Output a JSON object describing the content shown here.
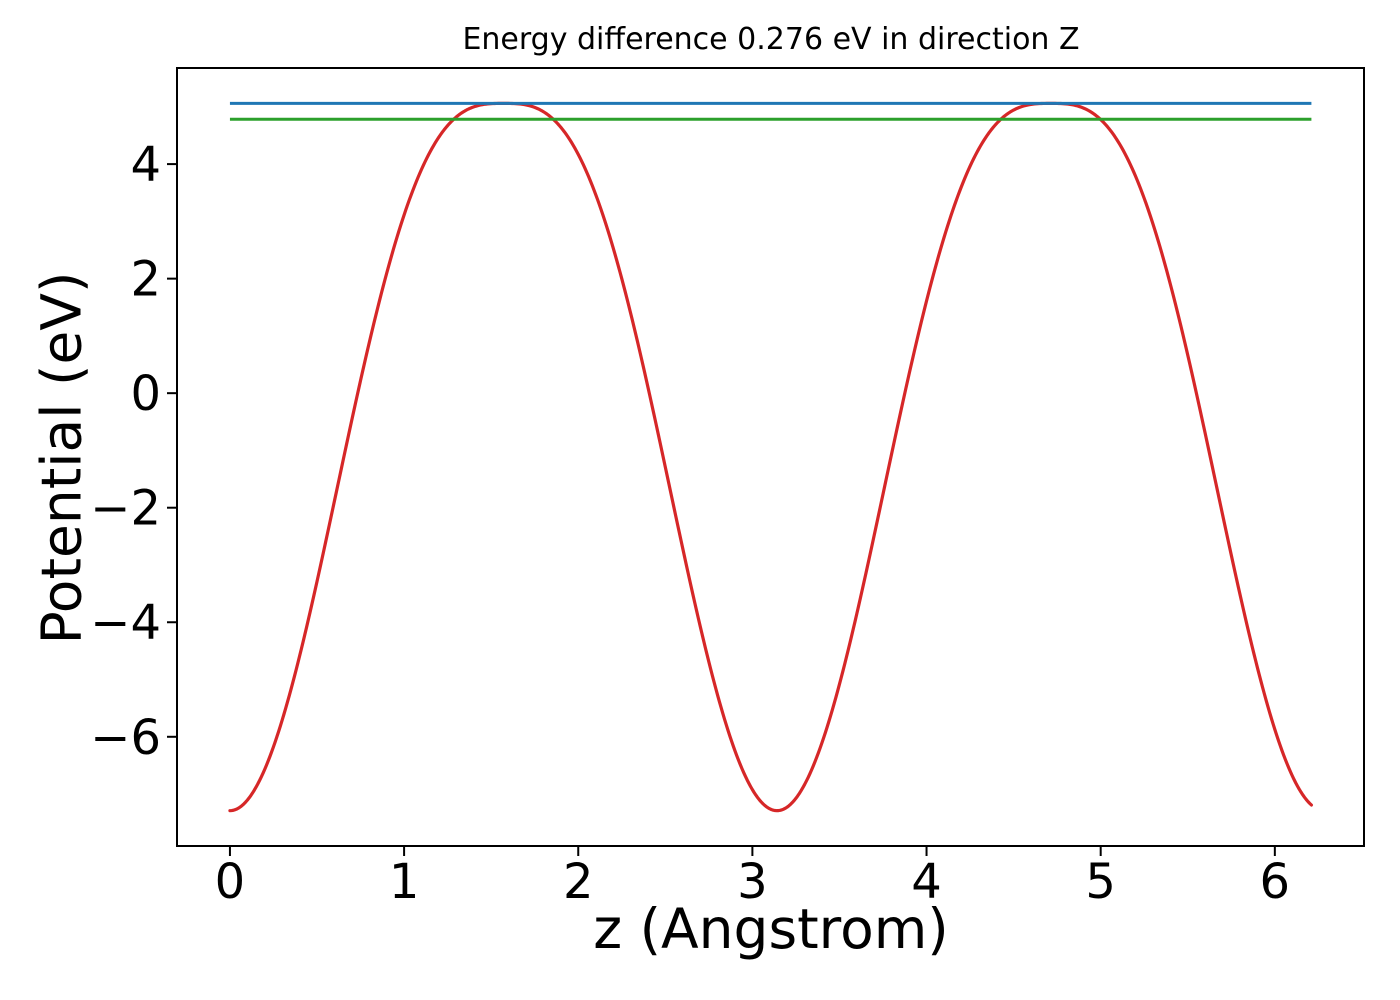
{
  "figure": {
    "background": "#ffffff",
    "spine_color": "#000000"
  },
  "chart_data": {
    "type": "line",
    "title": "Energy difference 0.276 eV in direction Z",
    "xlabel": "z (Angstrom)",
    "ylabel": "Potential (eV)",
    "energy_difference_ev": 0.276,
    "xlim": [
      -0.304,
      6.512
    ],
    "ylim": [
      -7.907,
      5.678
    ],
    "grid": false,
    "legend_position": "none",
    "xticks": {
      "values": [
        0,
        1,
        2,
        3,
        4,
        5,
        6
      ],
      "labels": [
        "0",
        "1",
        "2",
        "3",
        "4",
        "5",
        "6"
      ]
    },
    "yticks": {
      "values": [
        4,
        2,
        0,
        -2,
        -4,
        -6
      ],
      "labels": [
        "4",
        "2",
        "0",
        "−2",
        "−4",
        "−6"
      ]
    },
    "series": [
      {
        "name": "potential-curve",
        "type": "curve",
        "color": "#d62728",
        "line_width": 3.2,
        "model": {
          "kind": "cosine-power-well",
          "formula": "V(z) = v_min + (v_max - v_min) * (1 - |cos z|^power)",
          "v_min": -7.29,
          "v_max": 5.06,
          "power": 3,
          "z_start": 0,
          "z_end": 6.21
        },
        "samples": {
          "z": [
            0,
            0.314,
            0.628,
            0.942,
            1.257,
            1.571,
            1.885,
            2.199,
            2.513,
            2.827,
            3.142,
            3.456,
            3.77,
            4.084,
            4.398,
            4.712,
            5.027,
            5.341,
            5.655,
            5.969,
            6.21
          ],
          "v": [
            -7.29,
            -5.56,
            -1.48,
            2.55,
            4.7,
            5.06,
            4.7,
            2.55,
            -1.48,
            -5.56,
            -7.29,
            -5.56,
            -1.48,
            2.55,
            4.7,
            5.06,
            4.7,
            2.55,
            -1.48,
            -5.56,
            -7.19
          ]
        }
      },
      {
        "name": "level-line-green",
        "type": "hline",
        "color": "#2ca02c",
        "line_width": 3,
        "value": 4.784,
        "z_start": 0,
        "z_end": 6.21
      },
      {
        "name": "level-line-blue",
        "type": "hline",
        "color": "#1f77b4",
        "line_width": 3,
        "value": 5.06,
        "z_start": 0,
        "z_end": 6.21
      }
    ]
  }
}
